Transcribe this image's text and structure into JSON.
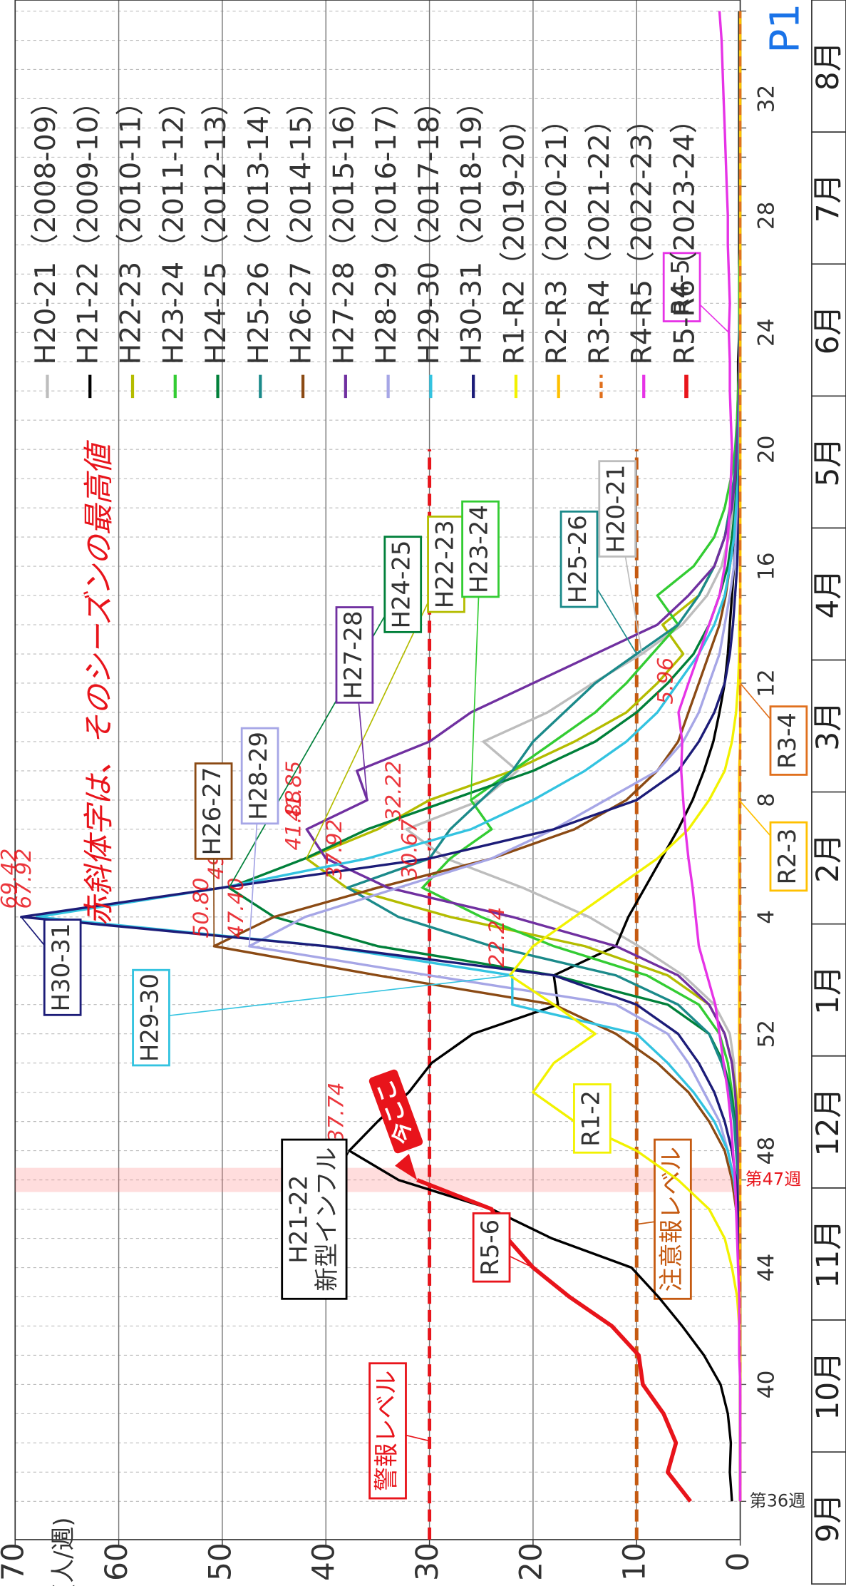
{
  "chart_data": {
    "type": "line",
    "note": "赤斜体字は、そのシーズンの最高値",
    "ylabel": "(人/週)",
    "page_label": "P1",
    "ylim": [
      0,
      70
    ],
    "yticks": [
      0,
      10,
      20,
      30,
      40,
      50,
      60,
      70
    ],
    "grid": true,
    "legend": "top-right",
    "categories": [
      "第36週",
      null,
      null,
      null,
      "40",
      null,
      null,
      null,
      "44",
      null,
      null,
      null,
      "48",
      null,
      null,
      null,
      "52",
      null,
      null,
      null,
      "4",
      null,
      null,
      null,
      "8",
      null,
      null,
      null,
      "12",
      null,
      null,
      null,
      "16",
      null,
      null,
      null,
      "20",
      null,
      null,
      null,
      "24",
      null,
      null,
      null,
      "28",
      null,
      null,
      null,
      "32",
      null,
      null,
      null
    ],
    "months": [
      "9月",
      "10月",
      "11月",
      "12月",
      "1月",
      "2月",
      "3月",
      "4月",
      "5月",
      "6月",
      "7月",
      "8月"
    ],
    "reference_lines": [
      {
        "value": 30,
        "label": "警報レベル",
        "color": "#e8141b"
      },
      {
        "value": 10,
        "label": "注意報レベル",
        "color": "#c55a11"
      }
    ],
    "current": {
      "label": "第47週",
      "pointer": "今ここ"
    },
    "series": [
      {
        "name": "H20-21（2008-09）",
        "callout": "H20-21",
        "color": "#bdbdbd",
        "peak_label": true,
        "values": [
          0,
          0,
          0,
          0,
          0,
          0,
          0,
          0,
          0,
          0,
          0.1,
          0.1,
          0.2,
          0.3,
          0.4,
          0.6,
          1.0,
          2.5,
          5.5,
          9.8,
          14.6,
          21.0,
          28.4,
          32.22,
          25.0,
          21.5,
          24.8,
          18.6,
          14.2,
          9.5,
          5.6,
          3.2,
          1.8,
          1.1,
          0.7,
          0.5,
          0.3,
          0.2,
          0.1,
          0.1,
          0.1,
          0.1,
          0.1,
          0,
          0,
          0,
          0,
          0,
          0,
          0,
          0,
          0
        ]
      },
      {
        "name": "H21-22（2009-10）",
        "callout": [
          "H21-22",
          "新型インフル"
        ],
        "color": "#000000",
        "peak_label": true,
        "values": [
          0.8,
          1.0,
          0.9,
          1.2,
          1.9,
          3.5,
          5.6,
          7.9,
          10.5,
          18.2,
          24.0,
          33.0,
          37.74,
          35.0,
          32.0,
          29.8,
          25.8,
          17.6,
          18.0,
          12.0,
          10.8,
          9.2,
          7.6,
          6.0,
          4.6,
          3.5,
          2.6,
          2.0,
          1.5,
          1.2,
          1.0,
          0.8,
          0.6,
          0.5,
          0.4,
          0.3,
          0.3,
          0.2,
          0.2,
          0.2,
          0.1,
          0.1,
          0.1,
          0.1,
          0.1,
          0.1,
          0.1,
          0.1,
          0.1,
          0.1,
          0.1,
          0.1
        ]
      },
      {
        "name": "H22-23（2010-11）",
        "callout": "H22-23",
        "color": "#b4bc00",
        "peak_label": true,
        "values": [
          0,
          0,
          0,
          0,
          0,
          0,
          0,
          0,
          0,
          0,
          0,
          0.1,
          0.1,
          0.2,
          0.4,
          0.8,
          1.5,
          3.0,
          7.0,
          15.0,
          28.0,
          38.0,
          41.88,
          35.0,
          30.0,
          22.0,
          16.0,
          11.0,
          8.0,
          5.5,
          7.5,
          4.0,
          2.5,
          1.5,
          1.0,
          0.6,
          0.4,
          0.3,
          0.2,
          0.1,
          0.1,
          0.1,
          0.1,
          0,
          0,
          0,
          0,
          0,
          0,
          0,
          0,
          0
        ]
      },
      {
        "name": "H23-24（2011-12）",
        "callout": "H23-24",
        "color": "#33cc33",
        "peak_label": true,
        "values": [
          0,
          0,
          0,
          0,
          0,
          0,
          0,
          0,
          0,
          0,
          0.1,
          0.2,
          0.3,
          0.5,
          0.8,
          1.2,
          2.0,
          4.0,
          9.0,
          18.0,
          25.0,
          30.67,
          28.0,
          24.0,
          26.0,
          22.0,
          18.0,
          14.0,
          11.0,
          8.5,
          6.0,
          8.0,
          4.5,
          2.5,
          1.5,
          0.9,
          0.5,
          0.3,
          0.2,
          0.1,
          0.1,
          0.1,
          0.1,
          0,
          0,
          0,
          0,
          0,
          0,
          0,
          0,
          0
        ]
      },
      {
        "name": "H24-25（2012-13）",
        "callout": "H24-25",
        "color": "#00803a",
        "peak_label": true,
        "values": [
          0,
          0,
          0,
          0,
          0,
          0,
          0,
          0,
          0,
          0,
          0.1,
          0.2,
          0.3,
          0.5,
          0.9,
          1.6,
          3.0,
          7.0,
          18.0,
          35.0,
          45.0,
          49.35,
          42.0,
          36.0,
          28.0,
          20.0,
          14.0,
          10.0,
          7.0,
          4.5,
          3.0,
          2.0,
          1.2,
          0.8,
          0.5,
          0.3,
          0.2,
          0.1,
          0.1,
          0.1,
          0,
          0,
          0,
          0,
          0,
          0,
          0,
          0,
          0,
          0,
          0,
          0
        ]
      },
      {
        "name": "H25-26（2013-14）",
        "callout": "H25-26",
        "color": "#1b8a8a",
        "peak_label": true,
        "values": [
          0,
          0,
          0,
          0,
          0,
          0,
          0,
          0,
          0,
          0,
          0.1,
          0.2,
          0.4,
          0.6,
          1.0,
          1.8,
          3.0,
          6.0,
          12.0,
          24.0,
          33.0,
          37.92,
          30.0,
          28.0,
          25.0,
          22.0,
          20.0,
          17.0,
          14.0,
          10.0,
          6.0,
          4.0,
          2.5,
          1.5,
          1.0,
          0.6,
          0.4,
          0.2,
          0.1,
          0.1,
          0.1,
          0,
          0,
          0,
          0,
          0,
          0,
          0,
          0,
          0,
          0,
          0
        ]
      },
      {
        "name": "H26-27（2014-15）",
        "callout": "H26-27",
        "color": "#8b4a14",
        "values": [
          0,
          0,
          0,
          0,
          0,
          0,
          0,
          0,
          0.1,
          0.2,
          0.4,
          0.8,
          1.5,
          3.0,
          5.0,
          8.0,
          12.0,
          18.0,
          35.0,
          50.8,
          45.0,
          35.0,
          24.0,
          16.0,
          11.0,
          8.0,
          6.0,
          5.0,
          4.0,
          3.0,
          2.0,
          1.4,
          1.0,
          0.6,
          0.4,
          0.2,
          0.1,
          0.1,
          0.1,
          0,
          0,
          0,
          0,
          0,
          0,
          0,
          0,
          0,
          0,
          0,
          0,
          0
        ],
        "value_labels": [
          null,
          null,
          null,
          null,
          null,
          null,
          null,
          null,
          null,
          null,
          null,
          null,
          null,
          null,
          null,
          null,
          null,
          null,
          null,
          "50.80",
          null,
          null,
          null,
          null,
          null,
          null,
          null,
          null,
          null,
          null,
          null,
          null,
          null,
          null,
          null,
          null,
          null,
          null,
          null,
          null,
          null,
          null,
          null,
          null,
          null,
          null,
          null,
          null,
          null,
          null,
          null,
          null
        ]
      },
      {
        "name": "H27-28（2015-16）",
        "callout": "H27-28",
        "color": "#7030a0",
        "peak_label": true,
        "values": [
          0,
          0,
          0,
          0,
          0,
          0,
          0,
          0,
          0,
          0,
          0,
          0.1,
          0.2,
          0.3,
          0.5,
          0.8,
          1.5,
          3.0,
          6.0,
          12.0,
          22.0,
          34.0,
          40.0,
          41.85,
          36.0,
          37.0,
          30.0,
          26.0,
          20.0,
          14.0,
          8.0,
          5.0,
          2.5,
          1.5,
          0.8,
          0.5,
          0.3,
          0.2,
          0.1,
          0.1,
          0,
          0,
          0,
          0,
          0,
          0,
          0,
          0,
          0,
          0,
          0,
          0
        ]
      },
      {
        "name": "H28-29（2016-17）",
        "callout": "H28-29",
        "color": "#a6a6e6",
        "values": [
          0,
          0,
          0,
          0,
          0,
          0,
          0,
          0,
          0,
          0.1,
          0.3,
          0.6,
          1.2,
          2.0,
          3.5,
          5.0,
          7.0,
          12.0,
          30.0,
          47.4,
          42.0,
          33.0,
          24.0,
          18.0,
          13.0,
          8.0,
          5.5,
          4.0,
          3.0,
          2.0,
          1.5,
          1.0,
          0.6,
          0.4,
          0.2,
          0.1,
          0.1,
          0,
          0,
          0,
          0,
          0,
          0,
          0,
          0,
          0,
          0,
          0,
          0,
          0,
          0,
          0
        ],
        "value_labels": [
          null,
          null,
          null,
          null,
          null,
          null,
          null,
          null,
          null,
          null,
          null,
          null,
          null,
          null,
          null,
          null,
          null,
          null,
          null,
          "47.40",
          null,
          null,
          null,
          null,
          null,
          null,
          null,
          null,
          null,
          null,
          null,
          null,
          null,
          null,
          null,
          null,
          null,
          null,
          null,
          null,
          null,
          null,
          null,
          null,
          null,
          null,
          null,
          null,
          null,
          null,
          null,
          null
        ]
      },
      {
        "name": "H29-30（2017-18）",
        "callout": "H29-30",
        "color": "#33c3e0",
        "peak_label": true,
        "values": [
          0,
          0,
          0,
          0,
          0,
          0,
          0,
          0,
          0,
          0.1,
          0.3,
          0.6,
          1.2,
          2.5,
          4.5,
          7.0,
          10.0,
          22.0,
          22.0,
          40.0,
          67.92,
          50.0,
          36.0,
          26.0,
          20.0,
          15.0,
          11.0,
          8.0,
          6.0,
          4.0,
          2.5,
          1.5,
          1.0,
          0.6,
          0.4,
          0.2,
          0.1,
          0.1,
          0,
          0,
          0,
          0,
          0,
          0,
          0,
          0,
          0,
          0,
          0,
          0,
          0,
          0
        ]
      },
      {
        "name": "H30-31（2018-19）",
        "callout": "H30-31",
        "color": "#1c1c78",
        "peak_label": true,
        "values": [
          0,
          0,
          0,
          0,
          0,
          0,
          0,
          0,
          0,
          0.1,
          0.2,
          0.4,
          0.8,
          1.5,
          2.5,
          4.0,
          6.0,
          10.0,
          18.0,
          40.0,
          69.42,
          50.0,
          30.0,
          18.0,
          10.0,
          6.0,
          4.0,
          2.5,
          1.5,
          1.0,
          0.7,
          0.5,
          0.3,
          0.2,
          0.1,
          0.1,
          0,
          0,
          0,
          0,
          0,
          0,
          0,
          0,
          0,
          0,
          0,
          0,
          0,
          0,
          0,
          0
        ]
      },
      {
        "name": "R1-R2（2019-20）",
        "callout": "R1-2",
        "color": "#f2f200",
        "peak_label": true,
        "values": [
          0,
          0,
          0,
          0,
          0,
          0,
          0.1,
          0.3,
          0.8,
          1.5,
          3.0,
          6.0,
          10.0,
          16.0,
          20.0,
          18.0,
          14.0,
          18.0,
          22.24,
          20.0,
          16.0,
          12.0,
          8.0,
          5.0,
          3.0,
          1.5,
          0.8,
          0.4,
          0.2,
          0.1,
          0.1,
          0,
          0,
          0,
          0,
          0,
          0,
          0,
          0,
          0,
          0,
          0,
          0,
          0,
          0,
          0,
          0,
          0,
          0,
          0,
          0,
          0
        ]
      },
      {
        "name": "R2-R3（2020-21）",
        "callout": "R2-3",
        "color": "#ffc000",
        "values": [
          0,
          0,
          0,
          0,
          0,
          0,
          0,
          0,
          0,
          0,
          0,
          0,
          0,
          0.1,
          0.1,
          0.1,
          0.1,
          0.1,
          0.1,
          0.1,
          0.1,
          0.1,
          0.1,
          0.1,
          0.1,
          0.1,
          0,
          0,
          0,
          0,
          0,
          0,
          0,
          0,
          0,
          0,
          0,
          0,
          0,
          0,
          0,
          0,
          0,
          0,
          0,
          0,
          0,
          0,
          0,
          0,
          0,
          0
        ]
      },
      {
        "name": "R3-R4（2021-22）",
        "callout": "R3-4",
        "color": "#e0701e",
        "dashed": true,
        "values": [
          0,
          0,
          0,
          0,
          0,
          0,
          0,
          0,
          0,
          0,
          0,
          0,
          0,
          0,
          0,
          0,
          0,
          0,
          0,
          0,
          0,
          0,
          0,
          0,
          0,
          0,
          0,
          0,
          0,
          0,
          0,
          0,
          0,
          0,
          0,
          0,
          0,
          0,
          0,
          0,
          0,
          0,
          0,
          0,
          0,
          0,
          0,
          0,
          0,
          0,
          0,
          0
        ]
      },
      {
        "name": "R4-R5（2022-23）",
        "callout": "R4-5",
        "color": "#e633e6",
        "peak_label": true,
        "values": [
          0,
          0,
          0,
          0,
          0,
          0.1,
          0.1,
          0.1,
          0.2,
          0.3,
          0.4,
          0.5,
          0.7,
          0.9,
          1.2,
          1.6,
          2.0,
          2.4,
          3.2,
          4.0,
          4.3,
          4.6,
          5.0,
          5.3,
          5.5,
          5.7,
          5.6,
          5.96,
          5.0,
          4.0,
          3.0,
          2.0,
          1.5,
          1.2,
          1.0,
          0.9,
          0.8,
          0.9,
          1.0,
          1.0,
          1.1,
          1.0,
          1.1,
          1.2,
          1.2,
          1.3,
          1.4,
          1.5,
          1.6,
          1.7,
          1.8,
          2.0
        ]
      },
      {
        "name": "R5-R6（2023-24）",
        "callout": "R5-6",
        "color": "#e8141b",
        "bold": true,
        "values": [
          4.8,
          7.0,
          6.2,
          7.4,
          9.4,
          9.8,
          12.4,
          16.5,
          20.0,
          22.5,
          24.0,
          31.2,
          null,
          null,
          null,
          null,
          null,
          null,
          null,
          null,
          null,
          null,
          null,
          null,
          null,
          null,
          null,
          null,
          null,
          null,
          null,
          null,
          null,
          null,
          null,
          null,
          null,
          null,
          null,
          null,
          null,
          null,
          null,
          null,
          null,
          null,
          null,
          null,
          null,
          null,
          null,
          null
        ]
      }
    ]
  }
}
